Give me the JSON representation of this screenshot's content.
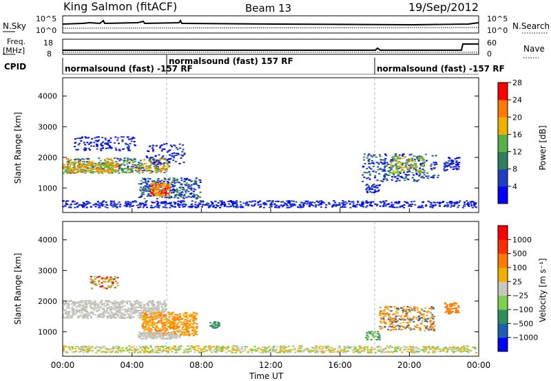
{
  "header": {
    "station": "King Salmon (fitACF)",
    "beam": "Beam 13",
    "date": "19/Sep/2012"
  },
  "noise_panel": {
    "left_label": "N.Sky",
    "right_label": "N.Search",
    "left_ticks": [
      "10^5",
      "10^0"
    ],
    "right_ticks": [
      "10^5",
      "10^0"
    ]
  },
  "freq_panel": {
    "left_label_line1": "Freq.",
    "left_label_line2": "[MHz]",
    "right_label": "Nave",
    "left_ticks": [
      "18",
      "8"
    ],
    "right_ticks": [
      "60",
      "0"
    ]
  },
  "cpid": {
    "label": "CPID",
    "segments": [
      {
        "text": "normalsound (fast) -157 RF",
        "start_h": 0,
        "end_h": 6
      },
      {
        "text": "normalsound (fast) 157 RF",
        "start_h": 6,
        "end_h": 18
      },
      {
        "text": "normalsound (fast) -157 RF",
        "start_h": 18,
        "end_h": 24
      }
    ]
  },
  "chart_data": [
    {
      "type": "heatmap",
      "ylabel": "Slant Range [km]",
      "yticks": [
        "1000",
        "2000",
        "3000",
        "4000"
      ],
      "ylim": [
        200,
        4600
      ],
      "xlim": [
        0,
        24
      ],
      "colorbar": {
        "label": "Power [dB]",
        "ticks": [
          "4",
          "8",
          "12",
          "16",
          "20",
          "24",
          "28"
        ],
        "colors": [
          "#0000ff",
          "#1f3fc0",
          "#2e7f5a",
          "#58b048",
          "#f0b000",
          "#ff7a00",
          "#ff0000"
        ]
      }
    },
    {
      "type": "heatmap",
      "ylabel": "Slant Range [km]",
      "yticks": [
        "1000",
        "2000",
        "3000",
        "4000"
      ],
      "ylim": [
        200,
        4600
      ],
      "xlim": [
        0,
        24
      ],
      "xlabel": "Time UT",
      "xticks": [
        "00:00",
        "04:00",
        "08:00",
        "12:00",
        "16:00",
        "20:00",
        "00:00"
      ],
      "colorbar": {
        "label": "Velocity [m s⁻¹]",
        "ticks": [
          "1000",
          "500",
          "100",
          "25",
          "−25",
          "−100",
          "−500",
          "−1000"
        ],
        "colors": [
          "#0000ff",
          "#1f5fb0",
          "#2e8f5a",
          "#7cd050",
          "#c8c8c0",
          "#f0b000",
          "#ff7a00",
          "#ff3000",
          "#ff0000"
        ]
      }
    }
  ]
}
